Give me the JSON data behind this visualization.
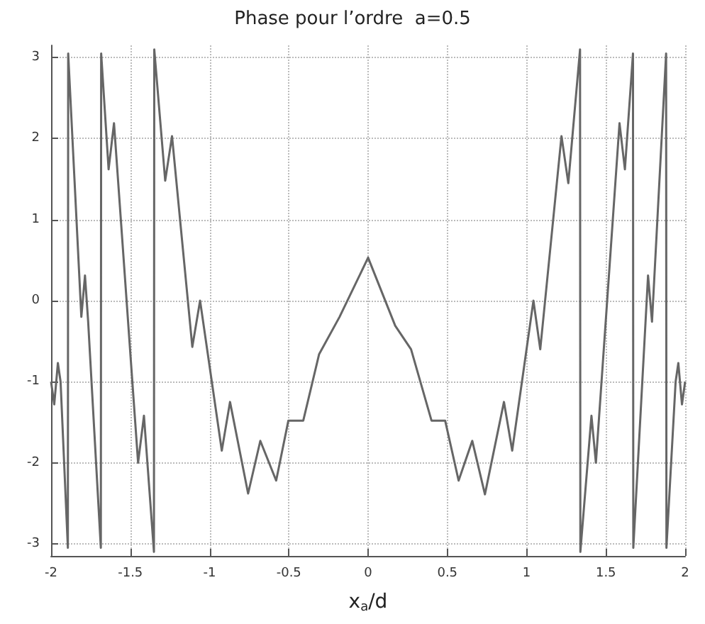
{
  "chart_data": {
    "type": "line",
    "title": "Phase pour l’ordre  a=0.5",
    "xlabel": "x$_{a}$/d",
    "x": [
      -2,
      -1.98,
      -1.957,
      -1.94,
      -1.894,
      -1.892,
      -1.809,
      -1.786,
      -1.766,
      -1.686,
      -1.684,
      -1.637,
      -1.603,
      -1.451,
      -1.414,
      -1.351,
      -1.349,
      -1.28,
      -1.237,
      -1.109,
      -1.06,
      -0.923,
      -0.871,
      -0.757,
      -0.68,
      -0.58,
      -0.503,
      -0.409,
      -0.309,
      -0.18,
      0,
      0.171,
      0.271,
      0.4,
      0.486,
      0.571,
      0.657,
      0.737,
      0.857,
      0.909,
      1.043,
      1.086,
      1.22,
      1.263,
      1.337,
      1.339,
      1.409,
      1.437,
      1.586,
      1.62,
      1.671,
      1.673,
      1.766,
      1.791,
      1.88,
      1.882,
      1.94,
      1.957,
      1.98,
      2
    ],
    "series": [
      {
        "color": "#666666",
        "values": [
          -1.0,
          -1.28,
          -0.77,
          -1.0,
          -3.05,
          3.05,
          -0.2,
          0.31,
          -0.26,
          -3.05,
          3.05,
          1.62,
          2.19,
          -2.0,
          -1.42,
          -3.1,
          3.1,
          1.48,
          2.03,
          -0.57,
          0,
          -1.85,
          -1.25,
          -2.38,
          -1.73,
          -2.22,
          -1.48,
          -1.48,
          -0.66,
          -0.2,
          0.53,
          -0.31,
          -0.6,
          -1.48,
          -1.48,
          -2.22,
          -1.73,
          -2.39,
          -1.25,
          -1.85,
          0,
          -0.6,
          2.03,
          1.45,
          3.1,
          -3.1,
          -1.42,
          -2.0,
          2.19,
          1.62,
          3.05,
          -3.05,
          0.31,
          -0.26,
          3.05,
          -3.05,
          -1.0,
          -0.77,
          -1.28,
          -1.0
        ]
      }
    ],
    "xlim": [
      -2,
      2
    ],
    "ylim": [
      -3.15,
      3.15
    ],
    "xticks": [
      -2,
      -1.5,
      -1,
      -0.5,
      0,
      0.5,
      1,
      1.5,
      2
    ],
    "yticks": [
      -3,
      -2,
      -1,
      0,
      1,
      2,
      3
    ],
    "grid": true,
    "line_style": "solid",
    "marker": "none"
  }
}
